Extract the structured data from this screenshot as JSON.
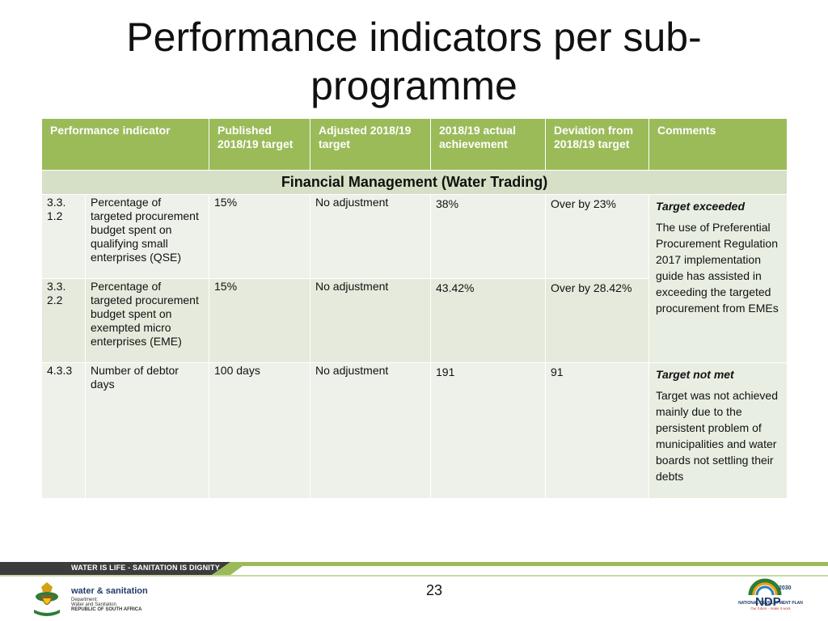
{
  "slide": {
    "title": "Performance indicators per sub-programme",
    "page_number": "23"
  },
  "table": {
    "headers": [
      "Performance indicator",
      "Published 2018/19 target",
      "Adjusted 2018/19 target",
      "2018/19 actual achievement",
      "Deviation from 2018/19 target",
      "Comments"
    ],
    "section": "Financial Management (Water Trading)",
    "rows": [
      {
        "code": "3.3. 1.2",
        "indicator": "Percentage of targeted procurement budget spent on qualifying small enterprises (QSE)",
        "published": "15%",
        "adjusted": "No adjustment",
        "actual": "38%",
        "deviation": "Over by 23%"
      },
      {
        "code": "3.3. 2.2",
        "indicator": "Percentage of targeted procurement budget spent on exempted micro enterprises (EME)",
        "published": "15%",
        "adjusted": "No adjustment",
        "actual": "43.42%",
        "deviation": "Over by 28.42%"
      },
      {
        "code": "4.3.3",
        "indicator": "Number of debtor days",
        "published": "100 days",
        "adjusted": "No adjustment",
        "actual": "191",
        "deviation": "91"
      }
    ],
    "comments": [
      {
        "heading": "Target exceeded",
        "body": "The use of Preferential Procurement Regulation 2017 implementation guide has assisted in exceeding the targeted procurement from EMEs"
      },
      {
        "heading": "Target not met",
        "body": "Target was not achieved mainly due to the persistent problem of municipalities and water boards not settling their debts"
      }
    ]
  },
  "footer": {
    "band_text": "WATER IS LIFE - SANITATION IS DIGNITY",
    "dept_title": "water & sanitation",
    "dept_lines": [
      "Department:",
      "Water and Sanitation",
      "REPUBLIC OF SOUTH AFRICA"
    ],
    "ndp_year": "2030",
    "ndp_letters": "NDP",
    "ndp_name": "NATIONAL DEVELOPMENT PLAN",
    "ndp_tagline": "Our future - make it work"
  },
  "colors": {
    "header_green": "#9bbb59",
    "section_band": "#d6e0c6",
    "row_light": "#eef1e9",
    "footer_dark": "#3c3c3c",
    "footer_green": "#9bbb59"
  }
}
